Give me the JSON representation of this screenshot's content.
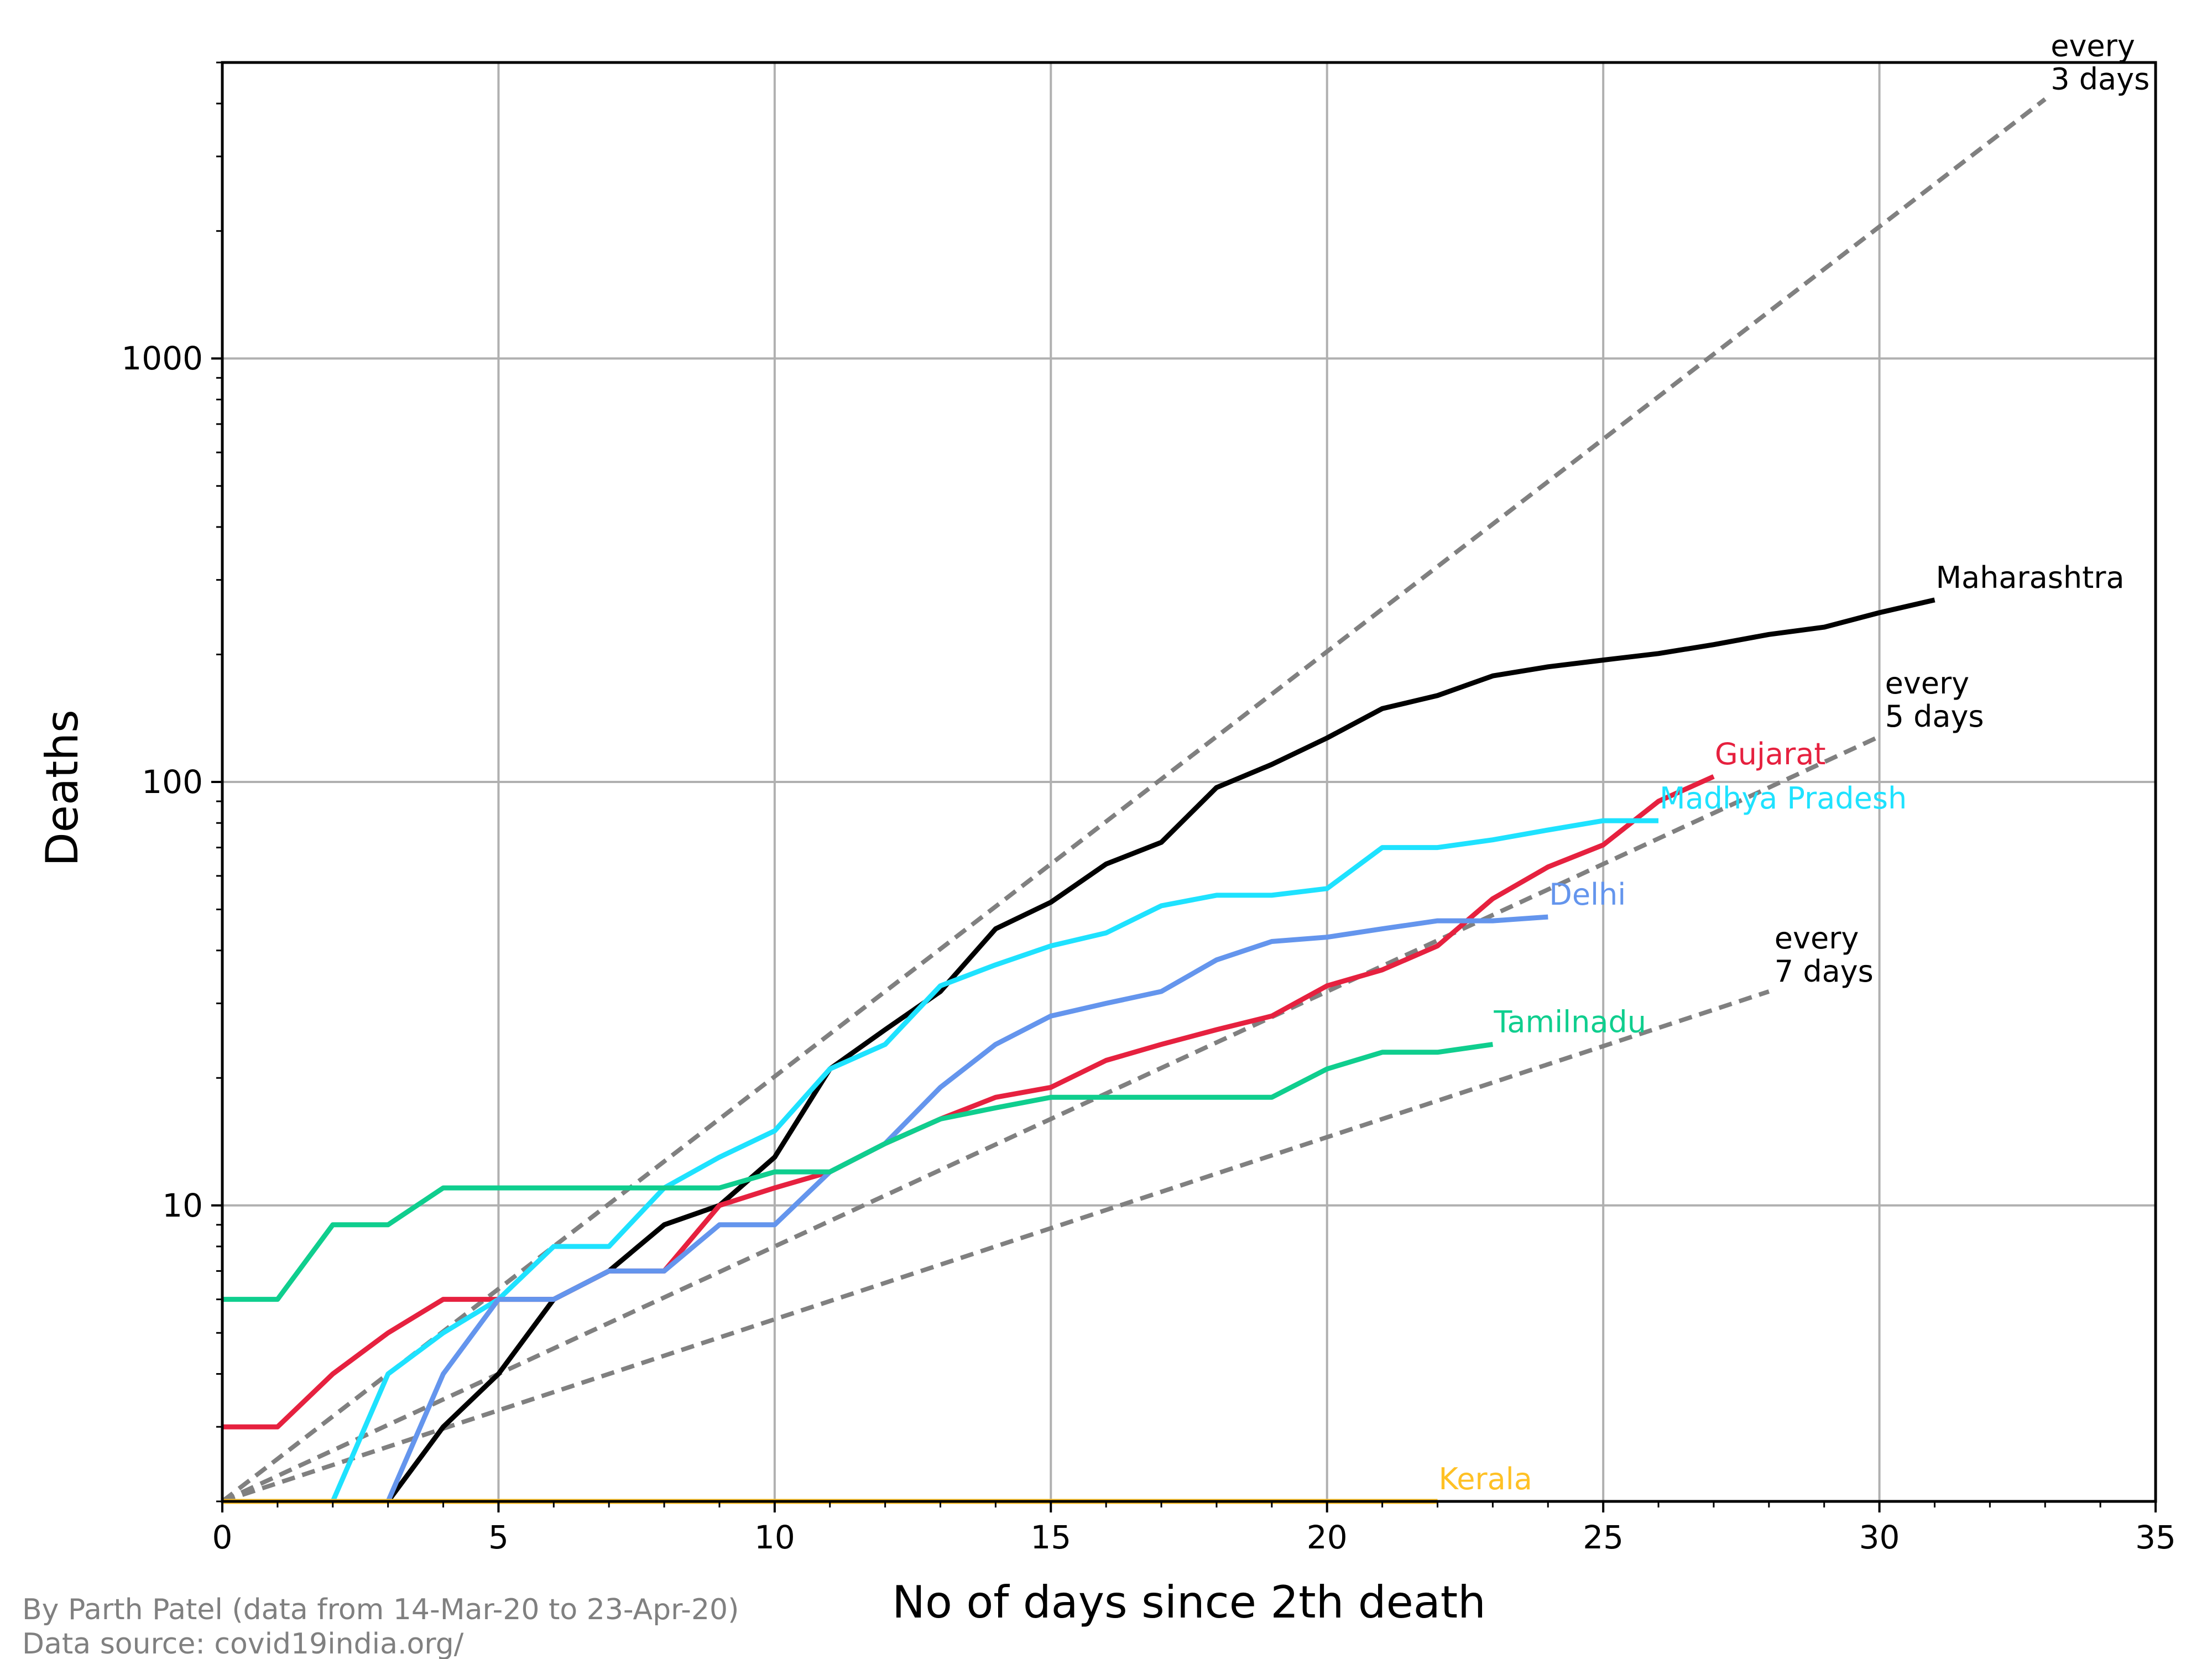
{
  "chart_data": {
    "type": "line",
    "xlabel": "No of days since 2th death",
    "ylabel": "Deaths",
    "xlim": [
      0,
      35
    ],
    "ylim": [
      2,
      5000
    ],
    "yscale": "log",
    "grid": true,
    "xticks": [
      0,
      5,
      10,
      15,
      20,
      25,
      30,
      35
    ],
    "yticks": [
      10,
      100,
      1000
    ],
    "series": [
      {
        "name": "Maharashtra",
        "color": "#000000",
        "x": [
          0,
          1,
          2,
          3,
          4,
          5,
          6,
          7,
          8,
          9,
          10,
          11,
          12,
          13,
          14,
          15,
          16,
          17,
          18,
          19,
          20,
          21,
          22,
          23,
          24,
          25,
          26,
          27,
          28,
          29,
          30,
          31
        ],
        "y": [
          2,
          2,
          2,
          2,
          3,
          4,
          6,
          7,
          9,
          10,
          13,
          21,
          26,
          32,
          45,
          52,
          64,
          72,
          97,
          110,
          127,
          149,
          160,
          178,
          187,
          194,
          201,
          211,
          223,
          232,
          251,
          269
        ]
      },
      {
        "name": "Gujarat",
        "color": "#e6213f",
        "x": [
          0,
          1,
          2,
          3,
          4,
          5,
          6,
          7,
          8,
          9,
          10,
          11,
          12,
          13,
          14,
          15,
          16,
          17,
          18,
          19,
          20,
          21,
          22,
          23,
          24,
          25,
          26,
          27
        ],
        "y": [
          3,
          3,
          4,
          5,
          6,
          6,
          6,
          7,
          7,
          10,
          11,
          12,
          14,
          16,
          18,
          19,
          22,
          24,
          26,
          28,
          33,
          36,
          41,
          53,
          63,
          71,
          90,
          103
        ]
      },
      {
        "name": "Madhya Pradesh",
        "color": "#1ee2ff",
        "x": [
          0,
          1,
          2,
          3,
          4,
          5,
          6,
          7,
          8,
          9,
          10,
          11,
          12,
          13,
          14,
          15,
          16,
          17,
          18,
          19,
          20,
          21,
          22,
          23,
          24,
          25,
          26
        ],
        "y": [
          2,
          2,
          2,
          4,
          5,
          6,
          8,
          8,
          11,
          13,
          15,
          21,
          24,
          33,
          37,
          41,
          44,
          51,
          54,
          54,
          56,
          70,
          70,
          73,
          77,
          81,
          81
        ]
      },
      {
        "name": "Delhi",
        "color": "#6495ed",
        "x": [
          0,
          1,
          2,
          3,
          4,
          5,
          6,
          7,
          8,
          9,
          10,
          11,
          12,
          13,
          14,
          15,
          16,
          17,
          18,
          19,
          20,
          21,
          22,
          23,
          24
        ],
        "y": [
          2,
          2,
          2,
          2,
          4,
          6,
          6,
          7,
          7,
          9,
          9,
          12,
          14,
          19,
          24,
          28,
          30,
          32,
          38,
          42,
          43,
          45,
          47,
          47,
          48
        ]
      },
      {
        "name": "Tamilnadu",
        "color": "#0fce8e",
        "x": [
          0,
          1,
          2,
          3,
          4,
          5,
          6,
          7,
          8,
          9,
          10,
          11,
          12,
          13,
          14,
          15,
          16,
          17,
          18,
          19,
          20,
          21,
          22,
          23
        ],
        "y": [
          6,
          6,
          9,
          9,
          11,
          11,
          11,
          11,
          11,
          11,
          12,
          12,
          14,
          16,
          17,
          18,
          18,
          18,
          18,
          18,
          21,
          23,
          23,
          24
        ]
      },
      {
        "name": "Kerala",
        "color": "#ffc125",
        "x": [
          0,
          22
        ],
        "y": [
          2,
          2
        ]
      }
    ],
    "reference_lines": [
      {
        "label_line1": "every",
        "label_line2": "3 days",
        "doubling_days": 3,
        "x_end": 33
      },
      {
        "label_line1": "every",
        "label_line2": "5 days",
        "doubling_days": 5,
        "x_end": 30
      },
      {
        "label_line1": "every",
        "label_line2": "7 days",
        "doubling_days": 7,
        "x_end": 28
      }
    ]
  },
  "footer": {
    "credit": "By Parth Patel (data from 14-Mar-20 to 23-Apr-20)",
    "source": "Data source: covid19india.org/"
  }
}
